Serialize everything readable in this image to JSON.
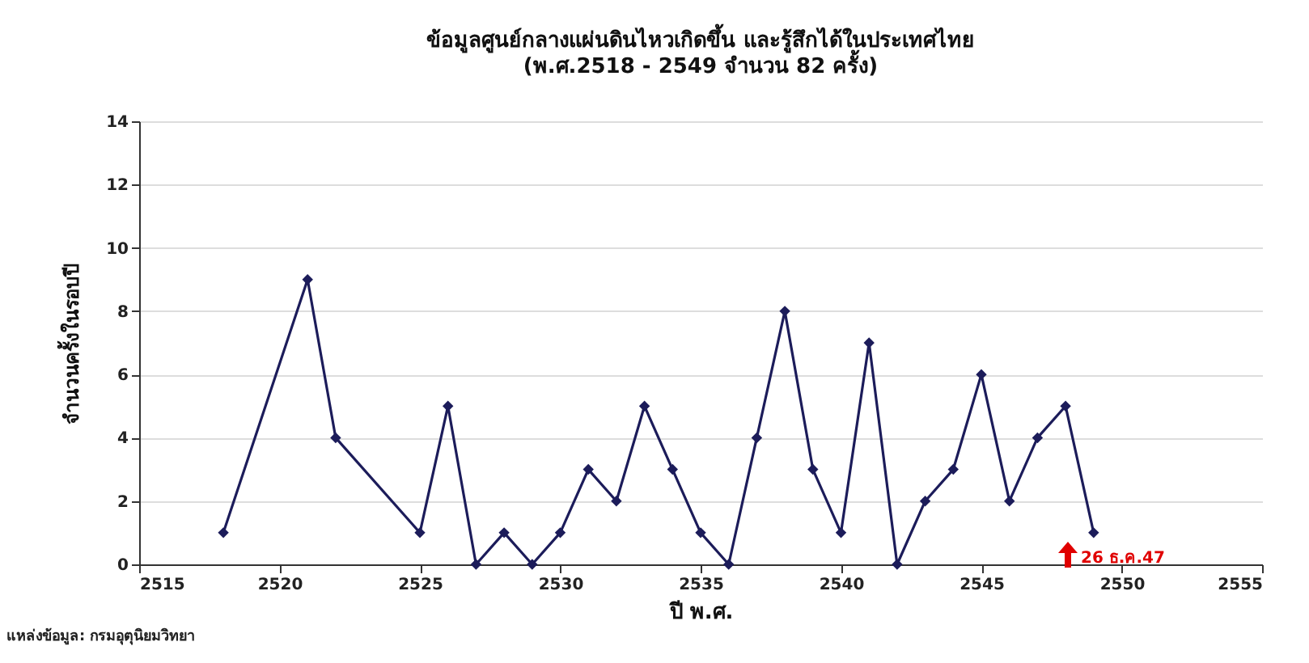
{
  "chart_data": {
    "type": "line",
    "title": "ข้อมูลศูนย์กลางแผ่นดินไหวเกิดขึ้น และรู้สึกได้ในประเทศไทย",
    "subtitle": "(พ.ศ.2518 - 2549 จำนวน 82 ครั้ง)",
    "xlabel": "ปี พ.ศ.",
    "ylabel": "จำนวนครั้งในรอบปี",
    "x": [
      2518,
      2521,
      2522,
      2525,
      2526,
      2527,
      2528,
      2529,
      2530,
      2531,
      2532,
      2533,
      2534,
      2535,
      2536,
      2537,
      2538,
      2539,
      2540,
      2541,
      2542,
      2543,
      2544,
      2545,
      2546,
      2547,
      2548,
      2549
    ],
    "series": [
      {
        "color": "#1c1c5a",
        "values": [
          1,
          9,
          4,
          1,
          5,
          0,
          1,
          0,
          1,
          3,
          2,
          5,
          3,
          1,
          0,
          4,
          8,
          3,
          1,
          7,
          0,
          2,
          3,
          6,
          2,
          4,
          5,
          1
        ]
      }
    ],
    "xlim": [
      2515,
      2555
    ],
    "xticks": [
      2515,
      2520,
      2525,
      2530,
      2535,
      2540,
      2545,
      2550,
      2555
    ],
    "ylim": [
      0,
      14
    ],
    "yticks": [
      0,
      2,
      4,
      6,
      8,
      10,
      12,
      14
    ],
    "grid": "y",
    "marker": "diamond",
    "line_style": "solid",
    "annotations": [
      "26 ธ.ค.47",
      "แหล่งข้อมูล: กรมอุตุนิยมวิทยา"
    ]
  }
}
